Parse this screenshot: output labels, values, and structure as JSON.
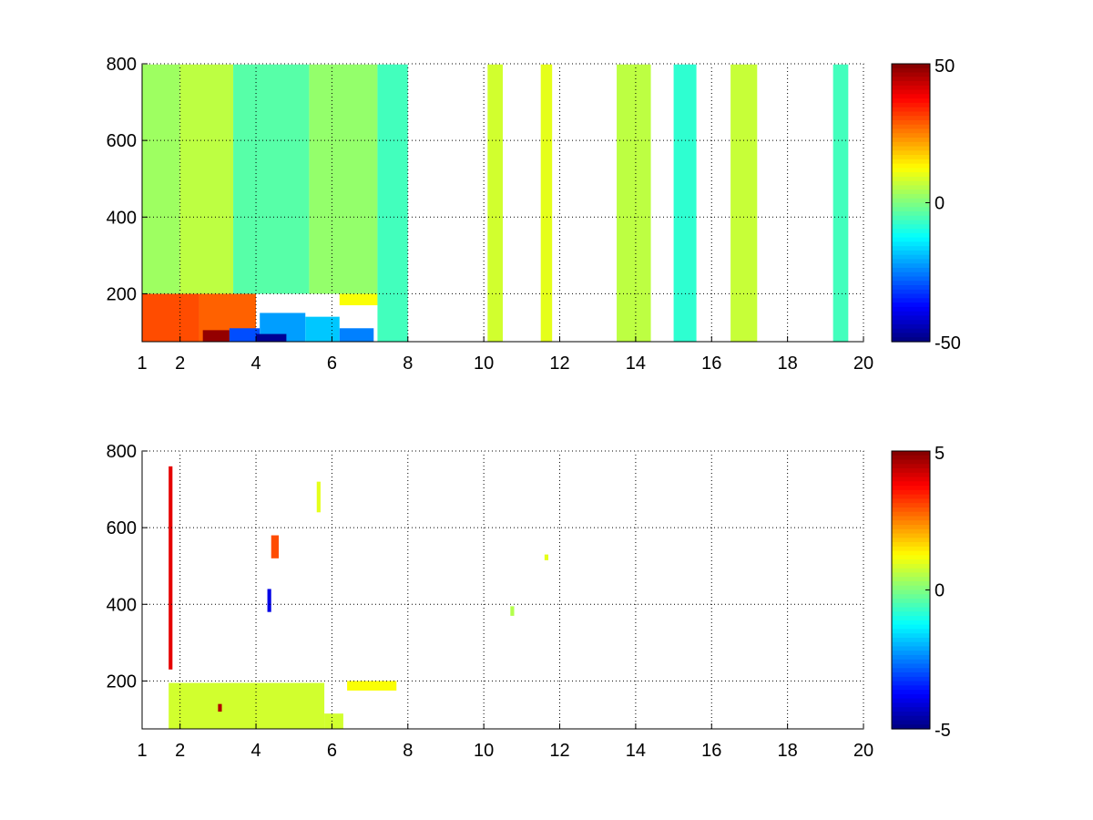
{
  "chart_data": [
    {
      "type": "heatmap",
      "title": "",
      "xlabel": "",
      "ylabel": "",
      "xlim": [
        1,
        20
      ],
      "ylim": [
        75,
        800
      ],
      "x_ticks": [
        1,
        2,
        4,
        6,
        8,
        10,
        12,
        14,
        16,
        18,
        20
      ],
      "y_ticks": [
        200,
        400,
        600,
        800
      ],
      "grid": true,
      "colormap": "jet",
      "colorbar": {
        "range": [
          -50,
          50
        ],
        "tick_labels": [
          "50",
          "0",
          "-50"
        ],
        "ticks": [
          50,
          0,
          -50
        ]
      },
      "cells": [
        {
          "x": [
            1.0,
            2.5
          ],
          "y": [
            75,
            200
          ],
          "v": 30
        },
        {
          "x": [
            2.5,
            4.0
          ],
          "y": [
            75,
            200
          ],
          "v": 28
        },
        {
          "x": [
            2.6,
            3.3
          ],
          "y": [
            75,
            105
          ],
          "v": 48
        },
        {
          "x": [
            3.3,
            4.1
          ],
          "y": [
            75,
            110
          ],
          "v": -30
        },
        {
          "x": [
            4.1,
            5.3
          ],
          "y": [
            75,
            150
          ],
          "v": -22
        },
        {
          "x": [
            4.0,
            4.8
          ],
          "y": [
            75,
            95
          ],
          "v": -48
        },
        {
          "x": [
            5.3,
            6.2
          ],
          "y": [
            75,
            140
          ],
          "v": -18
        },
        {
          "x": [
            6.2,
            7.1
          ],
          "y": [
            75,
            110
          ],
          "v": -25
        },
        {
          "x": [
            6.2,
            7.2
          ],
          "y": [
            170,
            200
          ],
          "v": 12
        },
        {
          "x": [
            1.0,
            2.0
          ],
          "y": [
            200,
            800
          ],
          "v": 3
        },
        {
          "x": [
            2.0,
            3.4
          ],
          "y": [
            200,
            800
          ],
          "v": 6
        },
        {
          "x": [
            3.4,
            5.4
          ],
          "y": [
            200,
            800
          ],
          "v": -4
        },
        {
          "x": [
            5.4,
            7.2
          ],
          "y": [
            200,
            800
          ],
          "v": 2
        },
        {
          "x": [
            7.2,
            8.0
          ],
          "y": [
            75,
            800
          ],
          "v": -6
        },
        {
          "x": [
            10.1,
            10.5
          ],
          "y": [
            75,
            800
          ],
          "v": 8
        },
        {
          "x": [
            11.5,
            11.8
          ],
          "y": [
            75,
            800
          ],
          "v": 10
        },
        {
          "x": [
            13.5,
            14.4
          ],
          "y": [
            75,
            800
          ],
          "v": 6
        },
        {
          "x": [
            15.0,
            15.6
          ],
          "y": [
            75,
            800
          ],
          "v": -8
        },
        {
          "x": [
            16.5,
            17.2
          ],
          "y": [
            75,
            800
          ],
          "v": 7
        },
        {
          "x": [
            19.2,
            19.6
          ],
          "y": [
            75,
            800
          ],
          "v": -6
        }
      ]
    },
    {
      "type": "heatmap",
      "title": "",
      "xlabel": "",
      "ylabel": "",
      "xlim": [
        1,
        20
      ],
      "ylim": [
        75,
        800
      ],
      "x_ticks": [
        1,
        2,
        4,
        6,
        8,
        10,
        12,
        14,
        16,
        18,
        20
      ],
      "y_ticks": [
        200,
        400,
        600,
        800
      ],
      "grid": true,
      "colormap": "jet",
      "colorbar": {
        "range": [
          -5,
          5
        ],
        "tick_labels": [
          "5",
          "0",
          "-5"
        ],
        "ticks": [
          5,
          0,
          -5
        ]
      },
      "cells": [
        {
          "x": [
            1.7,
            5.8
          ],
          "y": [
            75,
            195
          ],
          "v": 0.8
        },
        {
          "x": [
            5.8,
            6.3
          ],
          "y": [
            75,
            115
          ],
          "v": 0.8
        },
        {
          "x": [
            6.4,
            7.7
          ],
          "y": [
            175,
            200
          ],
          "v": 1.2
        },
        {
          "x": [
            1.7,
            1.8
          ],
          "y": [
            230,
            760
          ],
          "v": 4
        },
        {
          "x": [
            3.0,
            3.1
          ],
          "y": [
            120,
            140
          ],
          "v": 4.5
        },
        {
          "x": [
            4.4,
            4.6
          ],
          "y": [
            520,
            580
          ],
          "v": 3
        },
        {
          "x": [
            4.3,
            4.4
          ],
          "y": [
            380,
            440
          ],
          "v": -4
        },
        {
          "x": [
            5.6,
            5.7
          ],
          "y": [
            640,
            720
          ],
          "v": 1
        },
        {
          "x": [
            10.7,
            10.8
          ],
          "y": [
            370,
            395
          ],
          "v": 0.5
        },
        {
          "x": [
            11.6,
            11.7
          ],
          "y": [
            515,
            530
          ],
          "v": 1
        }
      ]
    }
  ]
}
